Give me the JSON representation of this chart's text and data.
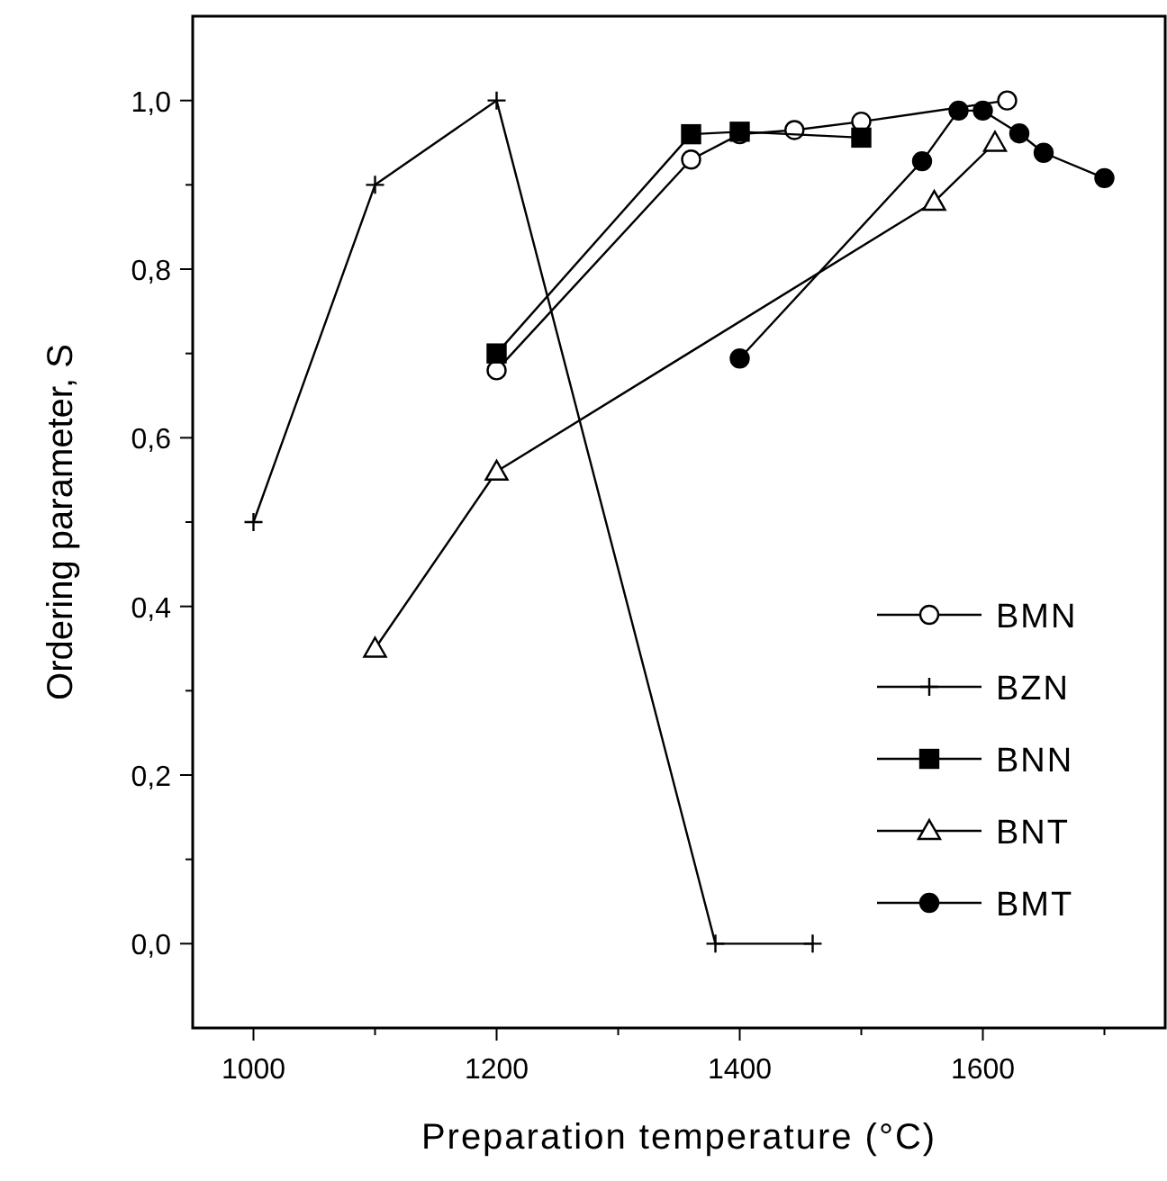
{
  "chart_data": {
    "type": "line",
    "xlabel": "Preparation temperature (°C)",
    "ylabel": "Ordering parameter, S",
    "xlim": [
      950,
      1750
    ],
    "ylim": [
      -0.1,
      1.1
    ],
    "xticks": [
      1000,
      {
        "value": 1100,
        "label": null
      },
      1200,
      {
        "value": 1300,
        "label": null
      },
      1400,
      {
        "value": 1500,
        "label": null
      },
      1600,
      {
        "value": 1700,
        "label": null
      }
    ],
    "yticks": [
      {
        "value": 0,
        "label": "0,0"
      },
      {
        "value": 0.1,
        "label": null
      },
      {
        "value": 0.2,
        "label": "0,2"
      },
      {
        "value": 0.3,
        "label": null
      },
      {
        "value": 0.4,
        "label": "0,4"
      },
      {
        "value": 0.5,
        "label": null
      },
      {
        "value": 0.6,
        "label": "0,6"
      },
      {
        "value": 0.7,
        "label": null
      },
      {
        "value": 0.8,
        "label": "0,8"
      },
      {
        "value": 0.9,
        "label": null
      },
      {
        "value": 1.0,
        "label": "1,0"
      }
    ],
    "legend": "bottom right",
    "line_style": "solid",
    "series": [
      {
        "name": "BMN",
        "color": "#000000",
        "marker": "circle",
        "x": [
          1200,
          1360,
          1400,
          1445,
          1500,
          1620
        ],
        "values": [
          0.68,
          0.93,
          0.96,
          0.965,
          0.975,
          1.0
        ]
      },
      {
        "name": "BZN",
        "color": "#000000",
        "marker": "cross",
        "x": [
          1000,
          1100,
          1200,
          1380,
          1460
        ],
        "values": [
          0.5,
          0.9,
          1.0,
          0,
          0
        ]
      },
      {
        "name": "BNN",
        "color": "#000000",
        "marker": "square",
        "x": [
          1200,
          1360,
          1400,
          1500
        ],
        "values": [
          0.7,
          0.96,
          0.963,
          0.956
        ]
      },
      {
        "name": "BNT",
        "color": "#000000",
        "marker": "triangle",
        "x": [
          1100,
          1200,
          1560,
          1610
        ],
        "values": [
          0.35,
          0.56,
          0.88,
          0.95
        ]
      },
      {
        "name": "BMT",
        "color": "#000000",
        "marker": "circle",
        "x": [
          1400,
          1550,
          1580,
          1600,
          1630,
          1650,
          1700
        ],
        "values": [
          0.694,
          0.928,
          0.988,
          0.988,
          0.961,
          0.938,
          0.908
        ]
      }
    ]
  }
}
